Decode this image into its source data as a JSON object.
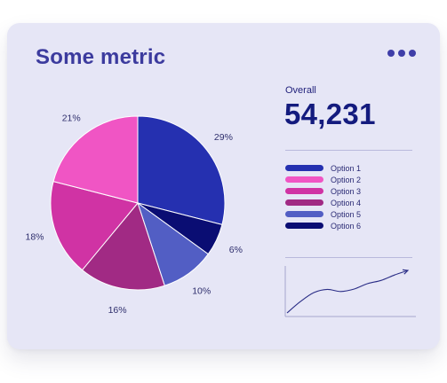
{
  "card": {
    "title": "Some metric",
    "menu_icon": "more-horizontal-icon"
  },
  "summary": {
    "label": "Overall",
    "value": "54,231"
  },
  "chart_data": [
    {
      "type": "pie",
      "slices": [
        {
          "label": "Option 1",
          "value": 29,
          "value_label": "29%",
          "color": "#2530b0"
        },
        {
          "label": "Option 6",
          "value": 6,
          "value_label": "6%",
          "color": "#0a0d73"
        },
        {
          "label": "Option 5",
          "value": 10,
          "value_label": "10%",
          "color": "#525ec4"
        },
        {
          "label": "Option 4",
          "value": 16,
          "value_label": "16%",
          "color": "#a12a84"
        },
        {
          "label": "Option 3",
          "value": 18,
          "value_label": "18%",
          "color": "#d033a4"
        },
        {
          "label": "Option 2",
          "value": 21,
          "value_label": "21%",
          "color": "#f055c4"
        }
      ]
    },
    {
      "type": "line",
      "series": [
        {
          "values": [
            0,
            3.2,
            5.7,
            6.6,
            6.0,
            6.7,
            8.2,
            9.1,
            10.6,
            11.9
          ]
        }
      ],
      "color": "#2a2d86"
    }
  ],
  "legend": [
    {
      "label": "Option 1",
      "color": "#2530b0"
    },
    {
      "label": "Option 2",
      "color": "#f055c4"
    },
    {
      "label": "Option 3",
      "color": "#d033a4"
    },
    {
      "label": "Option 4",
      "color": "#a12a84"
    },
    {
      "label": "Option 5",
      "color": "#525ec4"
    },
    {
      "label": "Option 6",
      "color": "#0a0d73"
    }
  ]
}
